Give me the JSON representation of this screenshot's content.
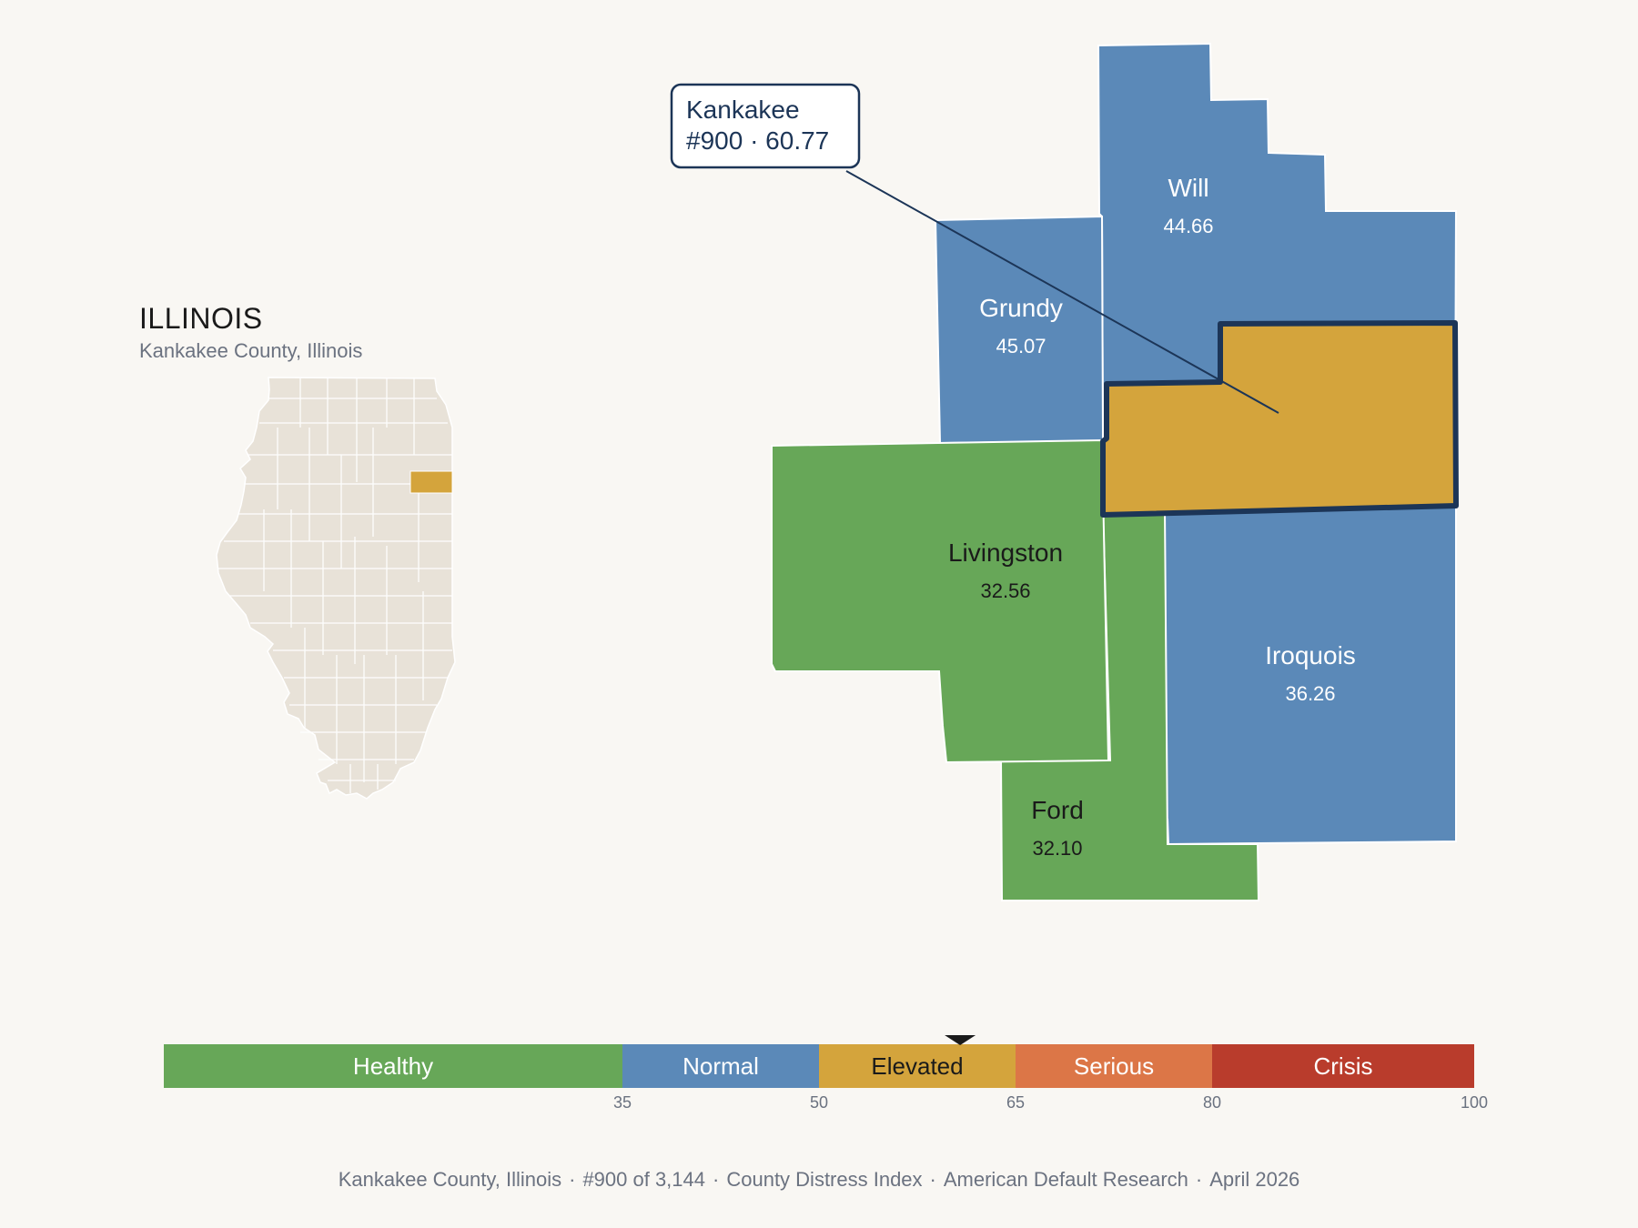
{
  "state": {
    "title": "ILLINOIS",
    "subtitle": "Kankakee County, Illinois"
  },
  "callout": {
    "line1": "Kankakee",
    "line2": "#900 · 60.77"
  },
  "counties": {
    "will": {
      "name": "Will",
      "value": "44.66",
      "category": "Normal"
    },
    "grundy": {
      "name": "Grundy",
      "value": "45.07",
      "category": "Normal"
    },
    "kankakee": {
      "name": "Kankakee",
      "value": "60.77",
      "category": "Elevated",
      "rank": "#900"
    },
    "livingston": {
      "name": "Livingston",
      "value": "32.56",
      "category": "Healthy"
    },
    "iroquois": {
      "name": "Iroquois",
      "value": "36.26",
      "category": "Normal"
    },
    "ford": {
      "name": "Ford",
      "value": "32.10",
      "category": "Healthy"
    }
  },
  "legend": {
    "bands": [
      {
        "label": "Healthy",
        "min": 0,
        "max": 35,
        "color": "#67a758"
      },
      {
        "label": "Normal",
        "min": 35,
        "max": 50,
        "color": "#5b89b8"
      },
      {
        "label": "Elevated",
        "min": 50,
        "max": 65,
        "color": "#d4a43c"
      },
      {
        "label": "Serious",
        "min": 65,
        "max": 80,
        "color": "#dc7647"
      },
      {
        "label": "Crisis",
        "min": 80,
        "max": 100,
        "color": "#b93c2c"
      }
    ],
    "ticks": [
      "35",
      "50",
      "65",
      "80",
      "100"
    ],
    "marker_value": 60.77
  },
  "colors": {
    "highlight_outline": "#1c3557",
    "state_fill": "#e8e2d8",
    "state_highlight": "#d4a43c"
  },
  "footer": {
    "county": "Kankakee County, Illinois",
    "rank": "#900 of 3,144",
    "index": "County Distress Index",
    "source": "American Default Research",
    "date": "April 2026"
  }
}
